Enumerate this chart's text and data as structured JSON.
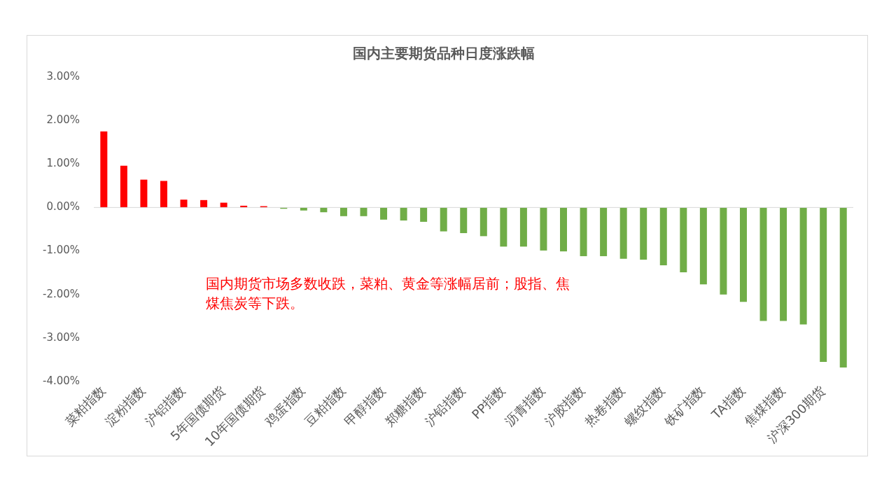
{
  "chart_data": {
    "type": "bar",
    "title": "国内主要期货品种日度涨跌幅",
    "categories": [
      "菜粕指数",
      null,
      "淀粉指数",
      null,
      "沪铝指数",
      null,
      "5年国债期货",
      null,
      "10年国债期货",
      null,
      "鸡蛋指数",
      null,
      "豆粕指数",
      null,
      "甲醇指数",
      null,
      "郑糖指数",
      null,
      "沪铅指数",
      null,
      "PP指数",
      null,
      "沥青指数",
      null,
      "沪胶指数",
      null,
      "热卷指数",
      null,
      "螺纹指数",
      null,
      "铁矿指数",
      null,
      "TA指数",
      null,
      "焦煤指数",
      null,
      "沪深300期货",
      null
    ],
    "values": [
      1.75,
      0.96,
      0.64,
      0.61,
      0.18,
      0.17,
      0.11,
      0.04,
      0.03,
      -0.03,
      -0.07,
      -0.11,
      -0.2,
      -0.2,
      -0.28,
      -0.3,
      -0.33,
      -0.55,
      -0.59,
      -0.66,
      -0.9,
      -0.9,
      -0.99,
      -1.01,
      -1.12,
      -1.12,
      -1.18,
      -1.2,
      -1.33,
      -1.49,
      -1.77,
      -2.0,
      -2.17,
      -2.61,
      -2.61,
      -2.69,
      -3.55,
      -3.68
    ],
    "colors": [
      "#ff0000",
      "#ff0000",
      "#ff0000",
      "#ff0000",
      "#ff0000",
      "#ff0000",
      "#ff0000",
      "#ff0000",
      "#ff0000",
      "#70ad47",
      "#70ad47",
      "#70ad47",
      "#70ad47",
      "#70ad47",
      "#70ad47",
      "#70ad47",
      "#70ad47",
      "#70ad47",
      "#70ad47",
      "#70ad47",
      "#70ad47",
      "#70ad47",
      "#70ad47",
      "#70ad47",
      "#70ad47",
      "#70ad47",
      "#70ad47",
      "#70ad47",
      "#70ad47",
      "#70ad47",
      "#70ad47",
      "#70ad47",
      "#70ad47",
      "#70ad47",
      "#70ad47",
      "#70ad47",
      "#70ad47",
      "#70ad47"
    ],
    "ylim": [
      -4,
      3
    ],
    "yticks": [
      {
        "value": -4,
        "label": "-4.00%"
      },
      {
        "value": -3,
        "label": "-3.00%"
      },
      {
        "value": -2,
        "label": "-2.00%"
      },
      {
        "value": -1,
        "label": "-1.00%"
      },
      {
        "value": 0,
        "label": "0.00%"
      },
      {
        "value": 1,
        "label": "1.00%"
      },
      {
        "value": 2,
        "label": "2.00%"
      },
      {
        "value": 3,
        "label": "3.00%"
      }
    ],
    "grid": false,
    "legend": false,
    "ref_lines": [
      {
        "axis": "y",
        "value": 0,
        "color": "#d9d9d9"
      }
    ],
    "annotations": [
      "国内期货市场多数收跌，菜粕、黄金等涨幅居前；股指、焦煤焦炭等下跌。"
    ]
  }
}
